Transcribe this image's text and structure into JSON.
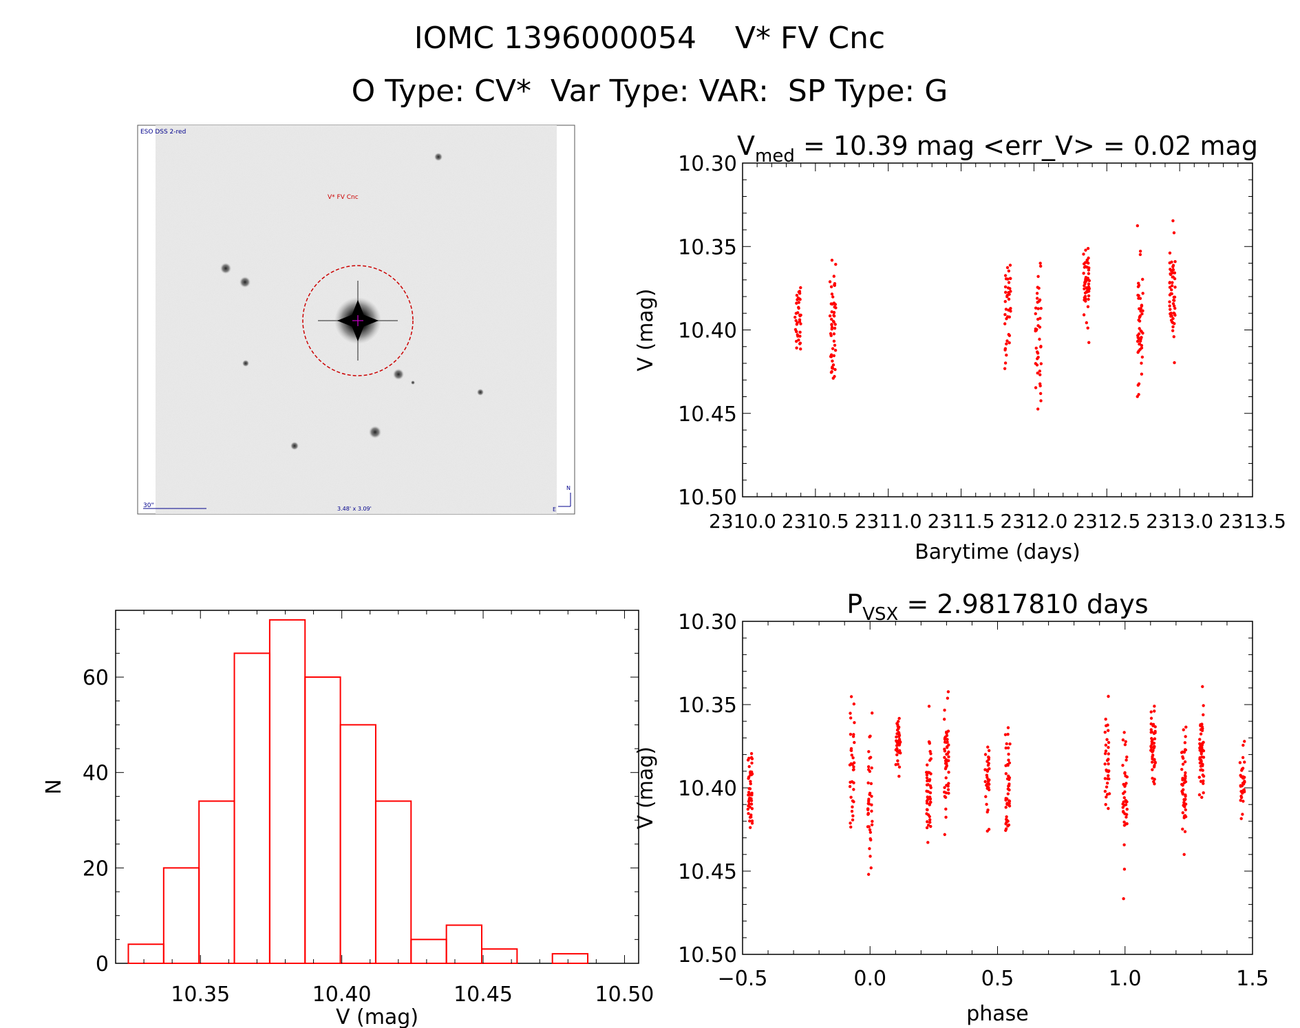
{
  "header": {
    "title": "IOMC 1396000054    V* FV Cnc",
    "subtitle": "O Type: CV*  Var Type: VAR:  SP Type: G"
  },
  "image_panel": {
    "survey_label": "ESO DSS 2-red",
    "target_label": "V* FV Cnc",
    "scale_label": "30\"",
    "fov_label": "3.48' x 3.09'",
    "compass_n": "N",
    "compass_e": "E"
  },
  "colors": {
    "data": "#ff0000",
    "target_circle": "#cc0000",
    "image_background": "#ececec",
    "stars": "#1a1a1a",
    "image_labels": "#00008b"
  },
  "chart_data": [
    {
      "id": "light_curve",
      "type": "scatter",
      "title_main": "V",
      "title_sub": "med",
      "title_rest": " = 10.39 mag <err_V> = 0.02 mag",
      "xlabel": "Barytime (days)",
      "ylabel": "V (mag)",
      "xlim": [
        2310.0,
        2313.5
      ],
      "ylim": [
        10.5,
        10.3
      ],
      "xticks": [
        "2310.0",
        "2310.5",
        "2311.0",
        "2311.5",
        "2312.0",
        "2312.5",
        "2313.0",
        "2313.5"
      ],
      "yticks": [
        "10.30",
        "10.35",
        "10.40",
        "10.45",
        "10.50"
      ],
      "clusters": [
        {
          "x": 2310.38,
          "mean": 10.396,
          "sd": 0.016,
          "n": 38
        },
        {
          "x": 2310.62,
          "mean": 10.398,
          "sd": 0.022,
          "n": 52
        },
        {
          "x": 2311.82,
          "mean": 10.385,
          "sd": 0.024,
          "n": 40
        },
        {
          "x": 2312.03,
          "mean": 10.405,
          "sd": 0.026,
          "n": 42
        },
        {
          "x": 2312.36,
          "mean": 10.373,
          "sd": 0.016,
          "n": 52
        },
        {
          "x": 2312.73,
          "mean": 10.395,
          "sd": 0.022,
          "n": 52
        },
        {
          "x": 2312.95,
          "mean": 10.378,
          "sd": 0.02,
          "n": 56
        }
      ]
    },
    {
      "id": "phase_curve",
      "type": "scatter",
      "title_main": "P",
      "title_sub": "VSX",
      "title_rest": " = 2.9817810 days",
      "xlabel": "phase",
      "ylabel": "V (mag)",
      "xlim": [
        -0.5,
        1.5
      ],
      "ylim": [
        10.5,
        10.3
      ],
      "xticks": [
        "−0.5",
        "0.0",
        "0.5",
        "1.0",
        "1.5"
      ],
      "yticks": [
        "10.30",
        "10.35",
        "10.40",
        "10.45",
        "10.50"
      ],
      "clusters": [
        {
          "x": -0.47,
          "mean": 10.398,
          "sd": 0.02,
          "n": 45
        },
        {
          "x": -0.07,
          "mean": 10.385,
          "sd": 0.022,
          "n": 35
        },
        {
          "x": 0.0,
          "mean": 10.405,
          "sd": 0.026,
          "n": 40
        },
        {
          "x": 0.11,
          "mean": 10.373,
          "sd": 0.014,
          "n": 45
        },
        {
          "x": 0.23,
          "mean": 10.398,
          "sd": 0.022,
          "n": 50
        },
        {
          "x": 0.3,
          "mean": 10.382,
          "sd": 0.02,
          "n": 50
        },
        {
          "x": 0.46,
          "mean": 10.396,
          "sd": 0.016,
          "n": 35
        },
        {
          "x": 0.54,
          "mean": 10.398,
          "sd": 0.022,
          "n": 45
        },
        {
          "x": 0.93,
          "mean": 10.385,
          "sd": 0.022,
          "n": 35
        },
        {
          "x": 1.0,
          "mean": 10.405,
          "sd": 0.026,
          "n": 40
        },
        {
          "x": 1.11,
          "mean": 10.373,
          "sd": 0.014,
          "n": 45
        },
        {
          "x": 1.23,
          "mean": 10.398,
          "sd": 0.022,
          "n": 50
        },
        {
          "x": 1.3,
          "mean": 10.382,
          "sd": 0.02,
          "n": 50
        },
        {
          "x": 1.46,
          "mean": 10.396,
          "sd": 0.016,
          "n": 35
        }
      ]
    },
    {
      "id": "histogram",
      "type": "bar",
      "xlabel": "V (mag)",
      "ylabel": "N",
      "xlim": [
        10.32,
        10.505
      ],
      "ylim": [
        0,
        74
      ],
      "xticks": [
        "10.35",
        "10.40",
        "10.45",
        "10.50"
      ],
      "yticks": [
        "0",
        "20",
        "40",
        "60"
      ],
      "bin_width": 0.0125,
      "bins": [
        {
          "start": 10.3245,
          "count": 4
        },
        {
          "start": 10.337,
          "count": 20
        },
        {
          "start": 10.3495,
          "count": 34
        },
        {
          "start": 10.362,
          "count": 65
        },
        {
          "start": 10.3745,
          "count": 72
        },
        {
          "start": 10.387,
          "count": 60
        },
        {
          "start": 10.3995,
          "count": 50
        },
        {
          "start": 10.412,
          "count": 34
        },
        {
          "start": 10.4245,
          "count": 5
        },
        {
          "start": 10.437,
          "count": 8
        },
        {
          "start": 10.4495,
          "count": 3
        },
        {
          "start": 10.462,
          "count": 0
        },
        {
          "start": 10.4745,
          "count": 2
        }
      ]
    }
  ]
}
